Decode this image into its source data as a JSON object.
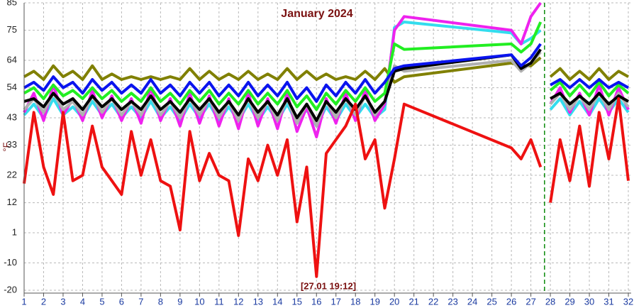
{
  "chart_data": {
    "type": "line",
    "title": "January 2024",
    "ylabel": "°F",
    "annotation": "[27.01 19:12]",
    "marker_x": 27.7,
    "grid": true,
    "xlim": [
      1,
      32
    ],
    "xticks": [
      1,
      2,
      3,
      4,
      5,
      6,
      7,
      8,
      9,
      10,
      11,
      12,
      13,
      14,
      15,
      16,
      17,
      18,
      19,
      20,
      21,
      22,
      23,
      24,
      25,
      26,
      27,
      28,
      29,
      30,
      31,
      32
    ],
    "ylim": [
      -20,
      85
    ],
    "yticks": [
      -20,
      -10,
      1,
      12,
      22,
      33,
      43,
      54,
      64,
      75,
      85
    ],
    "x": [
      1,
      1.5,
      2,
      2.5,
      3,
      3.5,
      4,
      4.5,
      5,
      5.5,
      6,
      6.5,
      7,
      7.5,
      8,
      8.5,
      9,
      9.5,
      10,
      10.5,
      11,
      11.5,
      12,
      12.5,
      13,
      13.5,
      14,
      14.5,
      15,
      15.5,
      16,
      16.5,
      17,
      17.5,
      18,
      18.5,
      19,
      19.5,
      20,
      20.5,
      26,
      26.5,
      27,
      27.5,
      27.75,
      28,
      28.5,
      29,
      29.5,
      30,
      30.5,
      31,
      31.5,
      32
    ],
    "series": [
      {
        "color": "#808000",
        "values": [
          58,
          60,
          57,
          62,
          58,
          60,
          57,
          62,
          57,
          59,
          57,
          58,
          57,
          58,
          57,
          58,
          57,
          61,
          57,
          60,
          57,
          59,
          57,
          60,
          57,
          59,
          57,
          61,
          57,
          60,
          57,
          59,
          57,
          58,
          57,
          60,
          57,
          61,
          56,
          58,
          63,
          62,
          62,
          65,
          null,
          58,
          61,
          57,
          60,
          57,
          61,
          57,
          60,
          58
        ]
      },
      {
        "color": "#33ddee",
        "values": [
          44,
          48,
          43,
          50,
          44,
          47,
          43,
          49,
          44,
          48,
          43,
          47,
          43,
          49,
          43,
          47,
          42,
          48,
          43,
          48,
          42,
          47,
          42,
          48,
          42,
          47,
          42,
          48,
          41,
          46,
          40,
          47,
          42,
          48,
          43,
          48,
          43,
          46,
          76,
          78,
          74,
          70,
          72,
          75,
          null,
          46,
          50,
          44,
          49,
          44,
          50,
          45,
          50,
          45
        ]
      },
      {
        "color": "#ee22ee",
        "values": [
          45,
          52,
          42,
          55,
          44,
          50,
          42,
          53,
          43,
          51,
          42,
          50,
          41,
          54,
          42,
          50,
          40,
          52,
          41,
          51,
          40,
          50,
          39,
          52,
          40,
          50,
          39,
          52,
          38,
          47,
          36,
          50,
          41,
          52,
          42,
          53,
          42,
          48,
          75,
          80,
          75,
          70,
          80,
          85,
          null,
          48,
          54,
          45,
          52,
          44,
          55,
          44,
          54,
          46
        ]
      },
      {
        "color": "#b0b0b0",
        "values": [
          46,
          50,
          45,
          52,
          46,
          49,
          44,
          51,
          45,
          50,
          44,
          49,
          44,
          51,
          44,
          49,
          43,
          50,
          44,
          50,
          43,
          49,
          42,
          50,
          43,
          49,
          42,
          50,
          41,
          48,
          40,
          49,
          43,
          50,
          44,
          51,
          44,
          49,
          62,
          60,
          64,
          60,
          63,
          67,
          null,
          48,
          52,
          46,
          51,
          46,
          52,
          46,
          52,
          47
        ]
      },
      {
        "color": "#000000",
        "values": [
          49,
          50,
          47,
          52,
          48,
          50,
          46,
          51,
          47,
          50,
          46,
          49,
          46,
          51,
          46,
          49,
          45,
          50,
          46,
          50,
          45,
          49,
          44,
          50,
          45,
          49,
          44,
          50,
          43,
          48,
          42,
          49,
          45,
          50,
          46,
          51,
          45,
          49,
          60,
          61,
          66,
          61,
          63,
          68,
          null,
          50,
          52,
          48,
          51,
          48,
          52,
          48,
          51,
          49
        ]
      },
      {
        "color": "#22ee22",
        "values": [
          52,
          54,
          50,
          55,
          51,
          53,
          50,
          54,
          50,
          53,
          49,
          52,
          49,
          54,
          49,
          52,
          48,
          53,
          49,
          53,
          48,
          52,
          48,
          53,
          48,
          52,
          48,
          53,
          47,
          51,
          46,
          52,
          48,
          53,
          49,
          54,
          49,
          52,
          70,
          68,
          70,
          67,
          70,
          78,
          null,
          53,
          56,
          51,
          55,
          51,
          56,
          51,
          55,
          52
        ]
      },
      {
        "color": "#0a14ee",
        "values": [
          54,
          56,
          53,
          58,
          54,
          56,
          52,
          57,
          53,
          56,
          52,
          55,
          52,
          57,
          52,
          55,
          51,
          56,
          52,
          56,
          51,
          55,
          51,
          56,
          51,
          55,
          51,
          56,
          50,
          54,
          49,
          55,
          51,
          56,
          52,
          57,
          52,
          56,
          61,
          62,
          66,
          62,
          65,
          70,
          null,
          55,
          57,
          54,
          57,
          54,
          57,
          54,
          56,
          54
        ]
      },
      {
        "color": "#ee1111",
        "values": [
          19,
          45,
          25,
          15,
          45,
          20,
          22,
          40,
          25,
          20,
          15,
          38,
          22,
          35,
          20,
          18,
          2,
          38,
          20,
          30,
          22,
          20,
          0,
          28,
          20,
          33,
          22,
          35,
          5,
          25,
          -15,
          30,
          35,
          40,
          48,
          28,
          35,
          10,
          28,
          48,
          32,
          28,
          35,
          25,
          null,
          12,
          35,
          20,
          40,
          18,
          45,
          28,
          50,
          20
        ]
      }
    ]
  }
}
